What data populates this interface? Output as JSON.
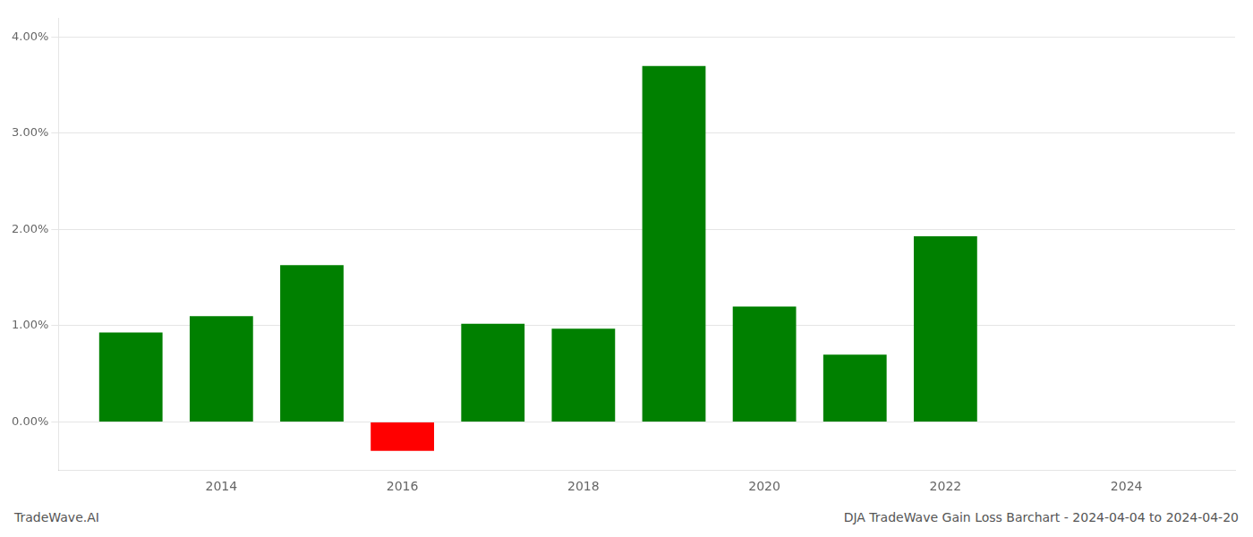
{
  "chart_data": {
    "type": "bar",
    "title": "DJA TradeWave Gain Loss Barchart - 2024-04-04 to 2024-04-20",
    "annotations": [
      "TradeWave.AI"
    ],
    "x": [
      2013,
      2014,
      2015,
      2016,
      2017,
      2018,
      2019,
      2020,
      2021,
      2022,
      2023
    ],
    "values": [
      0.0093,
      0.011,
      0.0163,
      -0.003,
      0.0102,
      0.0097,
      0.037,
      0.012,
      0.007,
      0.0193,
      0.0
    ],
    "colors": [
      "#008000",
      "#008000",
      "#008000",
      "#ff0000",
      "#008000",
      "#008000",
      "#008000",
      "#008000",
      "#008000",
      "#008000",
      "#008000"
    ],
    "xlim": [
      2012.2,
      2025.2
    ],
    "xticks": [
      2014,
      2016,
      2018,
      2020,
      2022,
      2024
    ],
    "ylim": [
      -0.005,
      0.042
    ],
    "yticks": [
      {
        "value": 0,
        "label": "0.00%"
      },
      {
        "value": 0.01,
        "label": "1.00%"
      },
      {
        "value": 0.02,
        "label": "2.00%"
      },
      {
        "value": 0.03,
        "label": "3.00%"
      },
      {
        "value": 0.04,
        "label": "4.00%"
      }
    ],
    "grid": true
  }
}
